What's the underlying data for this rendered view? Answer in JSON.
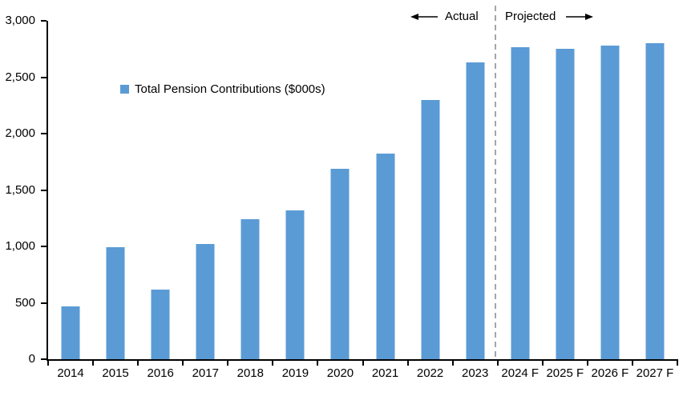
{
  "chart_data": {
    "type": "bar",
    "title": "",
    "legend_label": "Total Pension Contributions ($000s)",
    "legend_position": "upper-left-inside",
    "categories": [
      "2014",
      "2015",
      "2016",
      "2017",
      "2018",
      "2019",
      "2020",
      "2021",
      "2022",
      "2023",
      "2024 F",
      "2025 F",
      "2026 F",
      "2027 F"
    ],
    "values": [
      470,
      990,
      615,
      1020,
      1240,
      1320,
      1690,
      1820,
      2300,
      2630,
      2765,
      2750,
      2780,
      2800
    ],
    "xlabel": "",
    "ylabel": "",
    "ylim": [
      0,
      3000
    ],
    "y_ticks": [
      0,
      500,
      1000,
      1500,
      2000,
      2500,
      3000
    ],
    "y_tick_labels": [
      "0",
      "500",
      "1,000",
      "1,500",
      "2,000",
      "2,500",
      "3,000"
    ],
    "grid": false,
    "bar_color": "#5b9bd5",
    "axis_color": "#000000",
    "divider_after_category": "2023",
    "divider_color": "#a6a6a6"
  },
  "annotations": {
    "actual_label": "Actual",
    "projected_label": "Projected"
  }
}
